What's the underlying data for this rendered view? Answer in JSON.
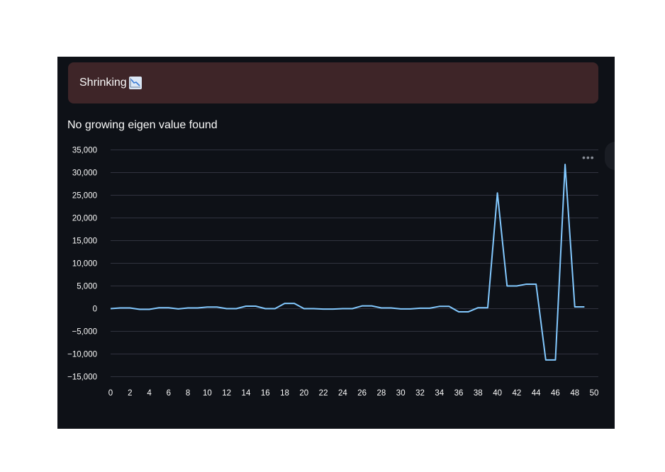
{
  "status": {
    "label": "Shrinking",
    "icon": "chart-decreasing-icon",
    "bg": "#3e2528"
  },
  "subtitle": "No growing eigen value found",
  "menu_icon": "more-horizontal-icon",
  "chart_data": {
    "type": "line",
    "title": "",
    "xlabel": "",
    "ylabel": "",
    "xlim": [
      0,
      50
    ],
    "ylim": [
      -16500,
      35000
    ],
    "grid": true,
    "line_color": "#83c9ff",
    "x_ticks": [
      0,
      2,
      4,
      6,
      8,
      10,
      12,
      14,
      16,
      18,
      20,
      22,
      24,
      26,
      28,
      30,
      32,
      34,
      36,
      38,
      40,
      42,
      44,
      46,
      48,
      50
    ],
    "y_ticks": [
      35000,
      30000,
      25000,
      20000,
      15000,
      10000,
      5000,
      0,
      -5000,
      -10000,
      -15000
    ],
    "y_tick_labels": [
      "35,000",
      "30,000",
      "25,000",
      "20,000",
      "15,000",
      "10,000",
      "5,000",
      "0",
      "−5,000",
      "−10,000",
      "−15,000"
    ],
    "series": [
      {
        "values": [
          0,
          150,
          150,
          -150,
          -150,
          200,
          200,
          -50,
          150,
          150,
          350,
          350,
          0,
          0,
          550,
          550,
          0,
          0,
          1150,
          1150,
          0,
          0,
          -100,
          -100,
          0,
          0,
          600,
          600,
          150,
          150,
          -50,
          -50,
          100,
          100,
          500,
          500,
          -700,
          -700,
          200,
          200,
          25500,
          5000,
          5000,
          5400,
          5400,
          -11300,
          -11300,
          31800,
          400,
          400
        ]
      }
    ]
  }
}
